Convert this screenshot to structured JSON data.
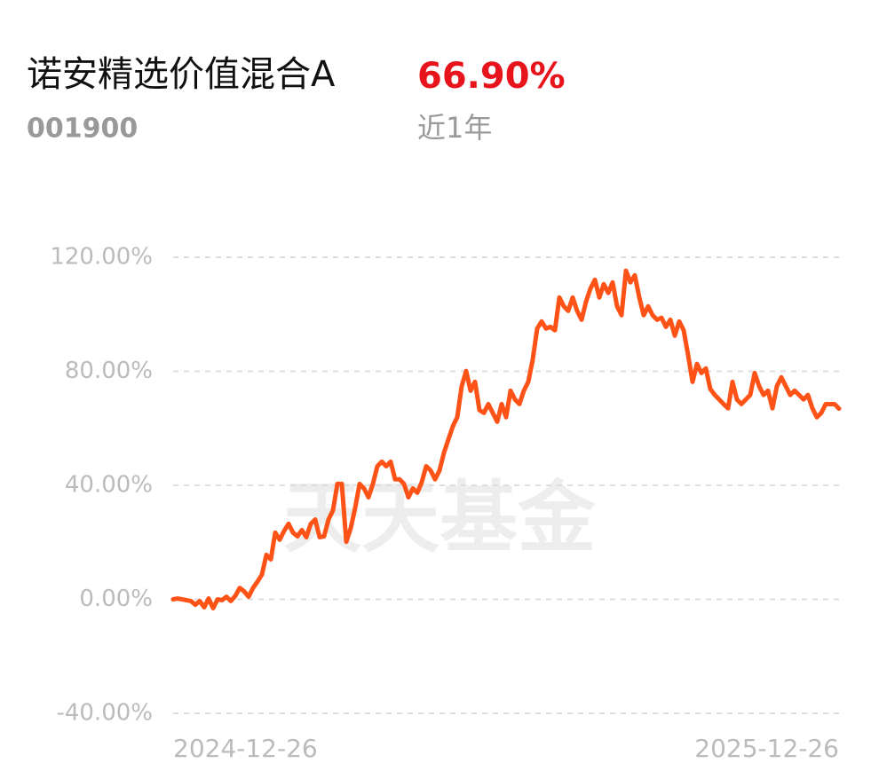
{
  "chart_data": {
    "type": "line",
    "title": "诺安精选价值混合A",
    "code": "001900",
    "return_text": "66.90%",
    "period": "近1年",
    "watermark": "天天基金",
    "color": "#ff5216",
    "return_color": "#e8141c",
    "grid": true,
    "ylim": [
      -40,
      120
    ],
    "yticks": [
      {
        "value": -40,
        "label": "-40.00%"
      },
      {
        "value": 0,
        "label": "0.00%"
      },
      {
        "value": 40,
        "label": "40.00%"
      },
      {
        "value": 80,
        "label": "80.00%"
      },
      {
        "value": 120,
        "label": "120.00%"
      }
    ],
    "categories": [
      "2024-12-26",
      null,
      null,
      null,
      null,
      null,
      null,
      null,
      null,
      null,
      null,
      null,
      null,
      null,
      null,
      null,
      null,
      null,
      null,
      null,
      null,
      null,
      null,
      null,
      null,
      null,
      null,
      null,
      null,
      null,
      null,
      null,
      null,
      null,
      null,
      null,
      null,
      null,
      null,
      null,
      null,
      null,
      null,
      null,
      null,
      null,
      null,
      null,
      null,
      null,
      null,
      null,
      null,
      null,
      null,
      null,
      null,
      null,
      null,
      null,
      null,
      null,
      null,
      null,
      null,
      null,
      null,
      null,
      null,
      null,
      null,
      null,
      null,
      null,
      null,
      null,
      null,
      null,
      null,
      null,
      null,
      null,
      null,
      null,
      null,
      null,
      null,
      null,
      null,
      null,
      null,
      null,
      null,
      null,
      null,
      null,
      null,
      null,
      null,
      null,
      null,
      null,
      null,
      null,
      null,
      null,
      null,
      null,
      null,
      null,
      null,
      null,
      null,
      null,
      null,
      null,
      null,
      null,
      null,
      null,
      null,
      null,
      null,
      null,
      null,
      null,
      null,
      null,
      null,
      null,
      null,
      null,
      null,
      null,
      null,
      null,
      null,
      null,
      null,
      null,
      null,
      null,
      null,
      null,
      null,
      null,
      null,
      null,
      null,
      null,
      "2025-12-26"
    ],
    "values": [
      0,
      0.3,
      0,
      -0.3,
      -0.6,
      -1.9,
      -0.6,
      -2.8,
      0.3,
      -3.1,
      0,
      -0.3,
      0.9,
      -0.6,
      1.2,
      4.0,
      2.8,
      0.9,
      4.0,
      6.2,
      8.7,
      15.6,
      14.0,
      23.4,
      20.9,
      24.0,
      26.5,
      23.4,
      22.1,
      24.3,
      21.8,
      26.5,
      28.0,
      21.8,
      22.1,
      28.0,
      31.2,
      40.5,
      40.5,
      20.2,
      24.9,
      32.1,
      40.5,
      38.9,
      35.8,
      40.5,
      46.7,
      48.3,
      46.7,
      48.3,
      42.1,
      42.1,
      40.5,
      35.8,
      38.9,
      37.4,
      41.1,
      46.7,
      45.2,
      42.1,
      45.2,
      51.4,
      56.1,
      60.7,
      63.9,
      74.8,
      80.1,
      73.2,
      76.3,
      66.4,
      65.4,
      68.5,
      65.4,
      62.3,
      68.5,
      63.9,
      73.2,
      70.1,
      68.5,
      73.2,
      76.3,
      84.1,
      95.0,
      97.5,
      95.0,
      95.6,
      94.4,
      105.9,
      102.8,
      101.2,
      105.9,
      101.2,
      98.1,
      104.4,
      109.0,
      112.1,
      105.9,
      110.6,
      107.5,
      111.2,
      102.8,
      99.7,
      115.3,
      111.2,
      113.7,
      105.9,
      99.7,
      102.8,
      99.7,
      98.1,
      98.8,
      95.6,
      98.1,
      92.5,
      97.5,
      94.4,
      85.7,
      76.3,
      82.6,
      79.4,
      81.0,
      73.8,
      71.7,
      70.1,
      68.5,
      67.0,
      76.3,
      70.1,
      68.5,
      70.1,
      71.7,
      79.4,
      74.8,
      71.7,
      73.2,
      67.0,
      74.8,
      77.9,
      74.8,
      71.7,
      73.2,
      71.7,
      70.1,
      71.7,
      67.0,
      63.9,
      65.4,
      68.5,
      68.5,
      68.5,
      66.9
    ]
  }
}
